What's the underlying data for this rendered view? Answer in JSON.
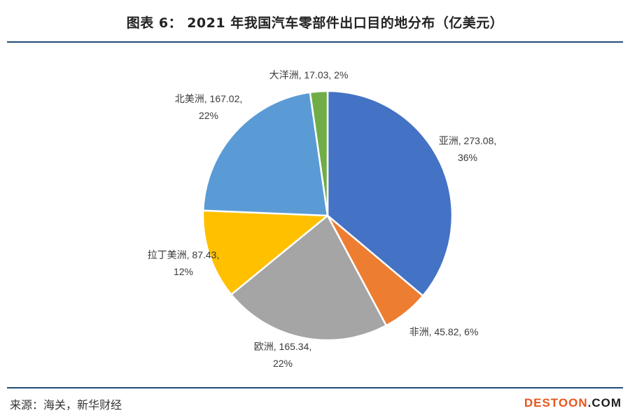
{
  "header": {
    "title": "图表 6： 2021 年我国汽车零部件出口目的地分布（亿美元）"
  },
  "footer": {
    "source": "来源：海关，新华财经",
    "watermark_main": "DESTOON",
    "watermark_tld": ".COM"
  },
  "chart_data": {
    "type": "pie",
    "title": "2021 年我国汽车零部件出口目的地分布（亿美元）",
    "unit": "亿美元",
    "slices": [
      {
        "label": "亚洲",
        "value": 273.08,
        "percent": "36%",
        "color": "#4472C4",
        "text_lines": [
          "亚洲, 273.08,",
          "36%"
        ]
      },
      {
        "label": "非洲",
        "value": 45.82,
        "percent": "6%",
        "color": "#ED7D31",
        "text_lines": [
          "非洲, 45.82, 6%"
        ]
      },
      {
        "label": "欧洲",
        "value": 165.34,
        "percent": "22%",
        "color": "#A5A5A5",
        "text_lines": [
          "欧洲, 165.34,",
          "22%"
        ]
      },
      {
        "label": "拉丁美洲",
        "value": 87.43,
        "percent": "12%",
        "color": "#FFC000",
        "text_lines": [
          "拉丁美洲, 87.43,",
          "12%"
        ]
      },
      {
        "label": "北美洲",
        "value": 167.02,
        "percent": "22%",
        "color": "#5B9BD5",
        "text_lines": [
          "北美洲, 167.02,",
          "22%"
        ]
      },
      {
        "label": "大洋洲",
        "value": 17.03,
        "percent": "2%",
        "color": "#70AD47",
        "text_lines": [
          "大洋洲, 17.03, 2%"
        ]
      }
    ],
    "start_angle_deg": 0,
    "direction": "clockwise",
    "legend": "none"
  }
}
